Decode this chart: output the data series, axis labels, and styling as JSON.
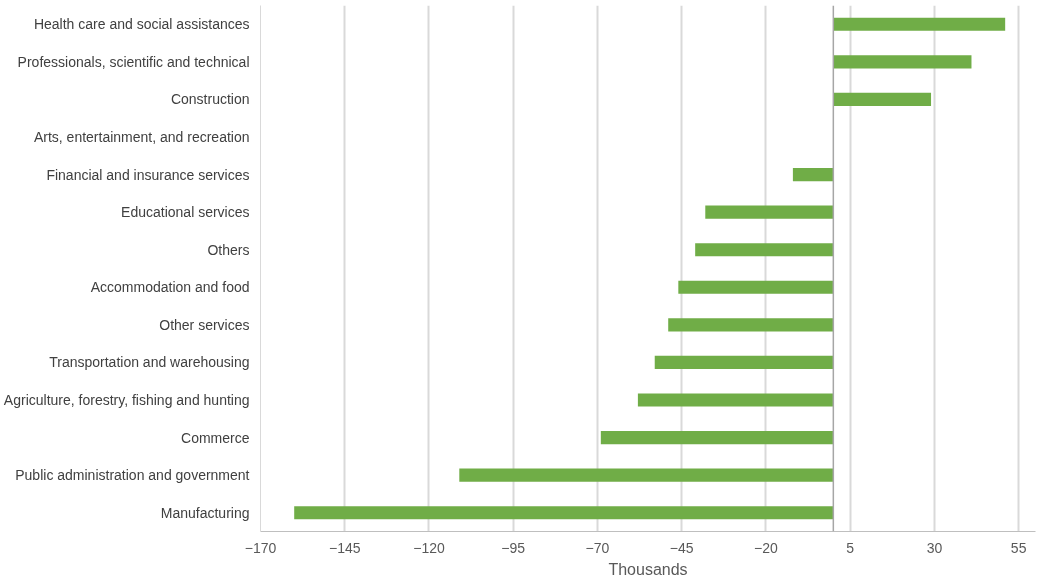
{
  "chart_data": {
    "type": "bar",
    "orientation": "horizontal",
    "xlabel": "Thousands",
    "categories": [
      "Health care and social assistances",
      "Professionals, scientific and technical",
      "Construction",
      "Arts, entertainment, and recreation",
      "Financial and insurance services",
      "Educational services",
      "Others",
      "Accommodation and food",
      "Other services",
      "Transportation and warehousing",
      "Agriculture, forestry, fishing and hunting",
      "Commerce",
      "Public administration and government",
      "Manufacturing"
    ],
    "values": [
      51,
      41,
      29,
      0,
      -12,
      -38,
      -41,
      -46,
      -49,
      -53,
      -58,
      -69,
      -111,
      -160
    ],
    "color": "#70ad47",
    "xlim": [
      -170,
      60
    ],
    "xticks": [
      -170,
      -145,
      -120,
      -95,
      -70,
      -45,
      -20,
      5,
      30,
      55
    ],
    "grid": "x"
  }
}
